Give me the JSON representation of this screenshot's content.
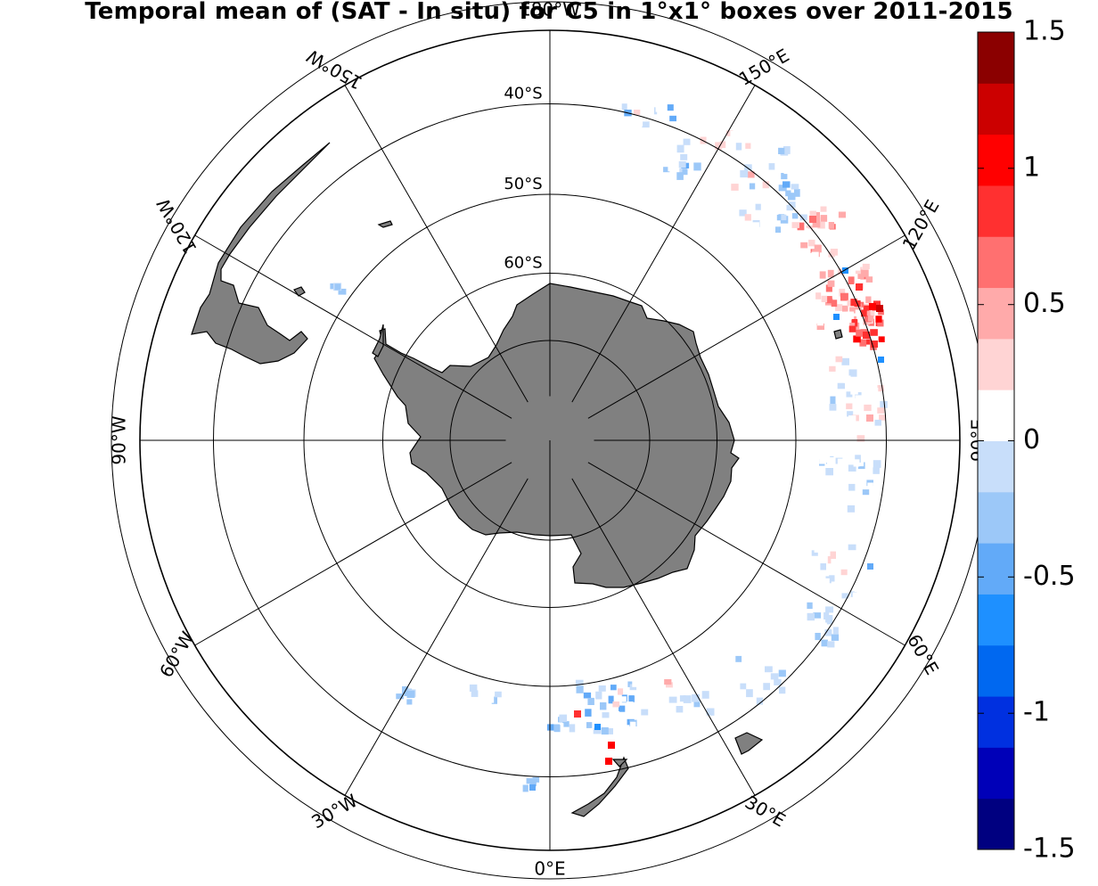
{
  "title": "Temporal mean of (SAT - In situ) for C5 in 1°x1° boxes over 2011-2015",
  "map": {
    "projection": "south polar stereographic",
    "meridian_labels": [
      {
        "lon": 0,
        "text": "0°E"
      },
      {
        "lon": 30,
        "text": "30°E"
      },
      {
        "lon": 60,
        "text": "60°E"
      },
      {
        "lon": 90,
        "text": "90°E"
      },
      {
        "lon": 120,
        "text": "120°E"
      },
      {
        "lon": 150,
        "text": "150°E"
      },
      {
        "lon": 180,
        "text": "180°W"
      },
      {
        "lon": -150,
        "text": "150°W"
      },
      {
        "lon": -120,
        "text": "120°W"
      },
      {
        "lon": -90,
        "text": "90°W"
      },
      {
        "lon": -60,
        "text": "60°W"
      },
      {
        "lon": -30,
        "text": "30°W"
      }
    ],
    "parallel_labels": [
      {
        "lat": -60,
        "text": "60°S"
      },
      {
        "lat": -50,
        "text": "50°S"
      },
      {
        "lat": -40,
        "text": "40°S"
      }
    ],
    "land_color": "#808080",
    "colormap": [
      "#000080",
      "#0000b8",
      "#0030e0",
      "#0068f0",
      "#1e90ff",
      "#62aaf8",
      "#9cc8f8",
      "#c8defa",
      "#ffffff",
      "#ffd4d4",
      "#ffaaaa",
      "#ff7070",
      "#ff3030",
      "#ff0000",
      "#cc0000",
      "#8b0000"
    ]
  },
  "colorbar": {
    "ticks": [
      "1.5",
      "1",
      "0.5",
      "0",
      "-0.5",
      "-1",
      "-1.5"
    ],
    "vmin": -1.5,
    "vmax": 1.5
  }
}
